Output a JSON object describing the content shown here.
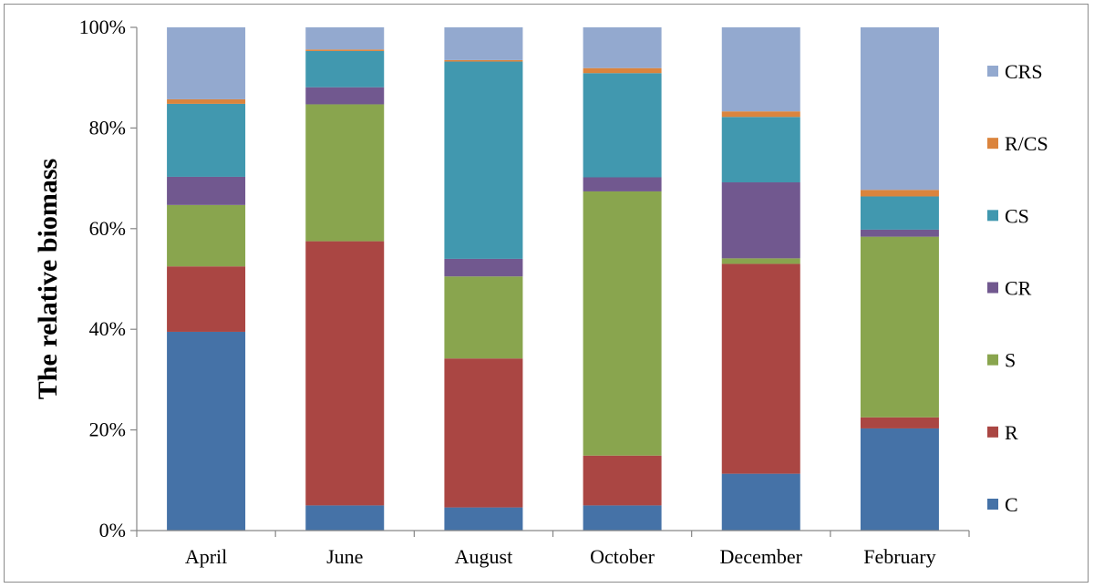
{
  "chart_data": {
    "type": "bar",
    "stacked": true,
    "normalized_percent": true,
    "title": "",
    "xlabel": "",
    "ylabel": "The relative biomass",
    "ylim": [
      0,
      100
    ],
    "yticks": [
      "0%",
      "20%",
      "40%",
      "60%",
      "80%",
      "100%"
    ],
    "grid": false,
    "legend_position": "right",
    "categories": [
      "April",
      "June",
      "August",
      "October",
      "December",
      "February"
    ],
    "series": [
      {
        "name": "C",
        "color": "#4572A7",
        "values": [
          39.5,
          5.0,
          4.6,
          5.0,
          11.3,
          20.3
        ]
      },
      {
        "name": "R",
        "color": "#AA4643",
        "values": [
          13.0,
          52.5,
          29.6,
          9.9,
          41.7,
          2.2
        ]
      },
      {
        "name": "S",
        "color": "#89A54E",
        "values": [
          12.2,
          27.2,
          16.3,
          52.5,
          1.1,
          35.9
        ]
      },
      {
        "name": "CR",
        "color": "#71588F",
        "values": [
          5.6,
          3.4,
          3.5,
          2.8,
          15.1,
          1.4
        ]
      },
      {
        "name": "CS",
        "color": "#4198AF",
        "values": [
          14.5,
          7.2,
          39.2,
          20.7,
          13.0,
          6.6
        ]
      },
      {
        "name": "R/CS",
        "color": "#DB843D",
        "values": [
          0.9,
          0.3,
          0.3,
          1.0,
          1.1,
          1.3
        ]
      },
      {
        "name": "CRS",
        "color": "#93A9CF",
        "values": [
          14.3,
          4.4,
          6.5,
          8.1,
          16.7,
          32.3
        ]
      }
    ]
  }
}
